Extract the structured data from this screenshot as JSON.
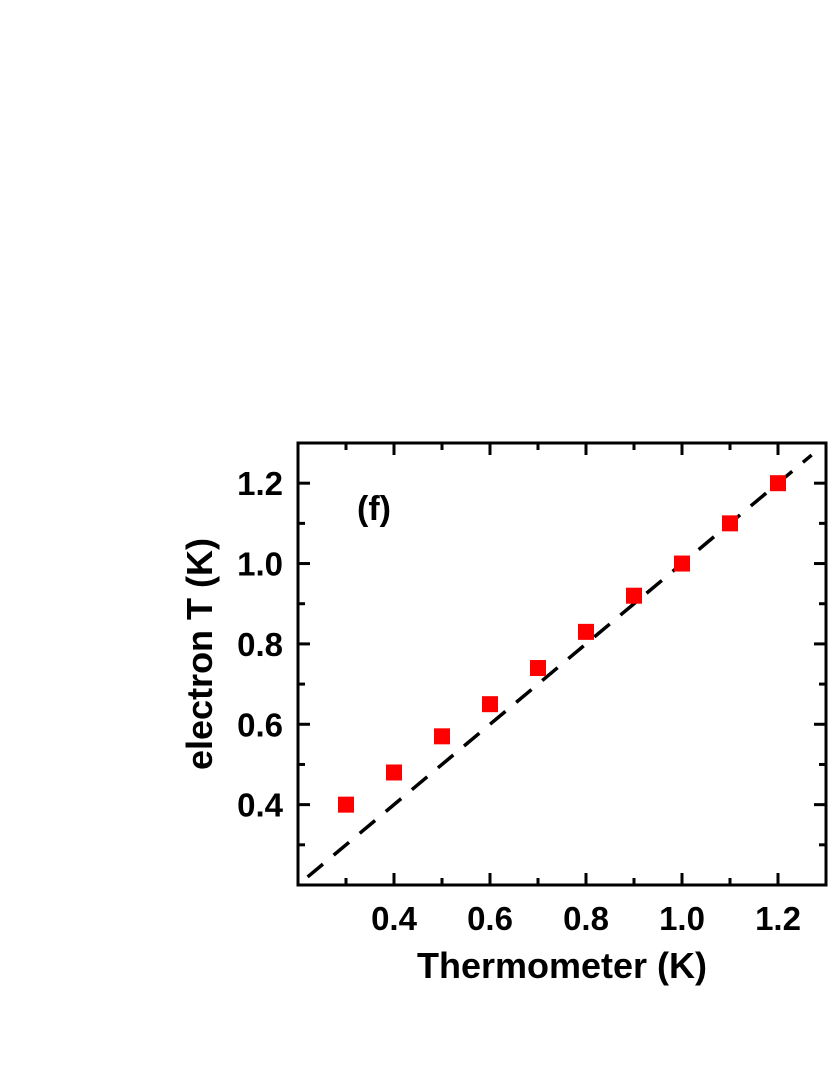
{
  "chart_data": {
    "type": "scatter",
    "panel_label": "(f)",
    "xlabel": "Thermometer (K)",
    "ylabel": "electron T (K)",
    "xlim": [
      0.2,
      1.3
    ],
    "ylim": [
      0.2,
      1.3
    ],
    "xticks": [
      0.4,
      0.6,
      0.8,
      1.0,
      1.2
    ],
    "xtick_labels": [
      "0.4",
      "0.6",
      "0.8",
      "1.0",
      "1.2"
    ],
    "yticks": [
      0.4,
      0.6,
      0.8,
      1.0,
      1.2
    ],
    "ytick_labels": [
      "0.4",
      "0.6",
      "0.8",
      "1.0",
      "1.2"
    ],
    "grid": false,
    "series": [
      {
        "marker": "square",
        "color": "#ff0000",
        "x": [
          0.3,
          0.4,
          0.5,
          0.6,
          0.7,
          0.8,
          0.9,
          1.0,
          1.1,
          1.2
        ],
        "y": [
          0.4,
          0.48,
          0.57,
          0.65,
          0.74,
          0.83,
          0.92,
          1.0,
          1.1,
          1.2
        ]
      }
    ],
    "reference_line": {
      "style": "dashed",
      "color": "#000000",
      "x": [
        0.2,
        1.3
      ],
      "y": [
        0.2,
        1.3
      ]
    }
  }
}
